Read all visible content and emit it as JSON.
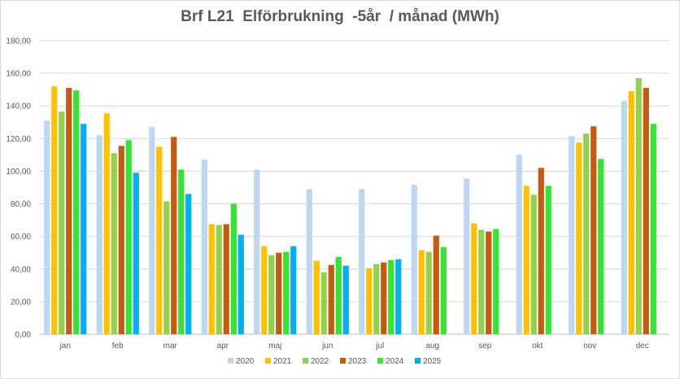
{
  "chart_data": {
    "type": "bar",
    "title": "Brf L21  Elförbrukning  -5år  / månad (MWh)",
    "xlabel": "",
    "ylabel": "",
    "ylim": [
      0,
      180
    ],
    "yticks": [
      "0,00",
      "20,00",
      "40,00",
      "60,00",
      "80,00",
      "100,00",
      "120,00",
      "140,00",
      "160,00",
      "180,00"
    ],
    "grid": true,
    "legend": "bottom",
    "categories": [
      "jan",
      "feb",
      "mar",
      "apr",
      "maj",
      "jun",
      "jul",
      "aug",
      "sep",
      "okt",
      "nov",
      "dec"
    ],
    "series": [
      {
        "name": "2020",
        "color": "#bdd7ee",
        "values": [
          131,
          122,
          127,
          107,
          101,
          89,
          89,
          91.5,
          95.5,
          110,
          121.5,
          143
        ]
      },
      {
        "name": "2021",
        "color": "#ffc000",
        "values": [
          152,
          135.5,
          115,
          67.5,
          54,
          45,
          40.5,
          51.5,
          68,
          91,
          117.5,
          149
        ]
      },
      {
        "name": "2022",
        "color": "#92d050",
        "values": [
          136.5,
          111,
          81.5,
          67,
          48.5,
          38,
          43,
          50.5,
          64,
          85.5,
          123,
          157
        ]
      },
      {
        "name": "2023",
        "color": "#c55a11",
        "values": [
          151,
          115.5,
          121,
          67.5,
          50,
          42.5,
          44,
          60.5,
          63,
          102,
          127.5,
          151
        ]
      },
      {
        "name": "2024",
        "color": "#33e533",
        "values": [
          149.5,
          119,
          101,
          80,
          50.5,
          47.5,
          45.5,
          53.5,
          64.5,
          91,
          107.5,
          129
        ]
      },
      {
        "name": "2025",
        "color": "#00b0f0",
        "values": [
          129,
          99,
          86,
          61,
          54,
          42,
          46,
          null,
          null,
          null,
          null,
          null
        ]
      }
    ]
  }
}
